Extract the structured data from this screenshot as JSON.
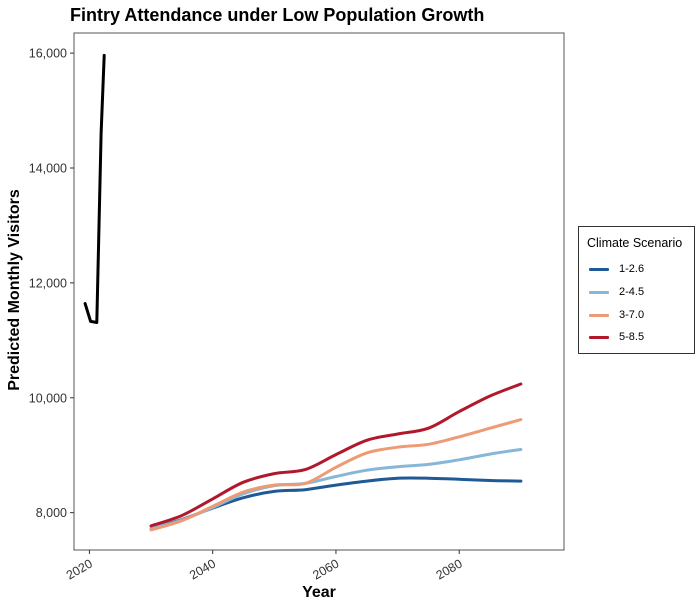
{
  "chart_data": {
    "type": "line",
    "title": "Fintry Attendance under Low Population Growth",
    "xlabel": "Year",
    "ylabel": "Predicted Monthly Visitors",
    "xlim": [
      2017.5,
      2097
    ],
    "ylim": [
      7350,
      16350
    ],
    "x_ticks": [
      2020,
      2040,
      2060,
      2080
    ],
    "y_ticks": [
      8000,
      10000,
      12000,
      14000,
      16000
    ],
    "y_tick_labels": [
      "8,000",
      "10,000",
      "12,000",
      "14,000",
      "16,000"
    ],
    "grid": false,
    "legend": {
      "title": "Climate Scenario",
      "placement": "right"
    },
    "series": [
      {
        "name": "",
        "color": "#000000",
        "x": [
          2019.3,
          2020.2,
          2021.2,
          2021.9,
          2022.4
        ],
        "y": [
          11640,
          11330,
          11310,
          14600,
          15960
        ]
      },
      {
        "name": "1-2.6",
        "color": "#1f5a96",
        "x": [
          2030,
          2035,
          2040,
          2045,
          2050,
          2055,
          2060,
          2065,
          2070,
          2075,
          2080,
          2085,
          2090
        ],
        "y": [
          7720,
          7880,
          8080,
          8260,
          8370,
          8400,
          8480,
          8550,
          8600,
          8600,
          8580,
          8560,
          8550
        ]
      },
      {
        "name": "2-4.5",
        "color": "#86b7d9",
        "x": [
          2030,
          2035,
          2040,
          2045,
          2050,
          2055,
          2060,
          2065,
          2070,
          2075,
          2080,
          2085,
          2090
        ],
        "y": [
          7720,
          7870,
          8090,
          8330,
          8470,
          8510,
          8630,
          8740,
          8800,
          8840,
          8920,
          9020,
          9100
        ]
      },
      {
        "name": "3-7.0",
        "color": "#ee9a74",
        "x": [
          2030,
          2035,
          2040,
          2045,
          2050,
          2055,
          2060,
          2065,
          2070,
          2075,
          2080,
          2085,
          2090
        ],
        "y": [
          7700,
          7860,
          8110,
          8360,
          8480,
          8510,
          8790,
          9040,
          9140,
          9190,
          9320,
          9470,
          9620
        ]
      },
      {
        "name": "5-8.5",
        "color": "#b2182b",
        "x": [
          2030,
          2035,
          2040,
          2045,
          2050,
          2055,
          2060,
          2065,
          2070,
          2075,
          2080,
          2085,
          2090
        ],
        "y": [
          7770,
          7950,
          8240,
          8530,
          8680,
          8750,
          9010,
          9260,
          9370,
          9470,
          9760,
          10030,
          10240
        ]
      }
    ]
  }
}
